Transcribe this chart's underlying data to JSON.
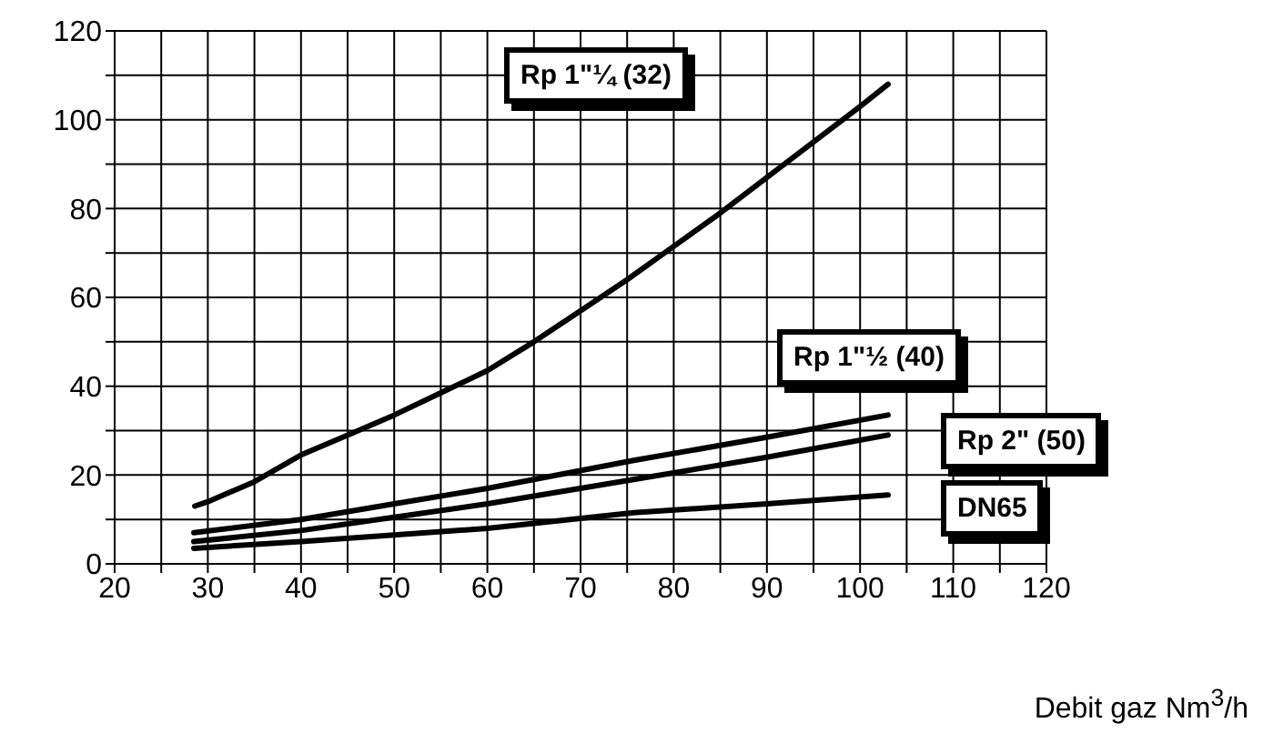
{
  "chart_data": {
    "type": "line",
    "xlabel": "Debit gaz Nm$^{3}$/h",
    "xlim": [
      20,
      120
    ],
    "ylim": [
      0,
      120
    ],
    "xticks": [
      20,
      {
        "value": 25,
        "label": null
      },
      30,
      {
        "value": 35,
        "label": null
      },
      40,
      {
        "value": 45,
        "label": null
      },
      50,
      {
        "value": 55,
        "label": null
      },
      60,
      {
        "value": 65,
        "label": null
      },
      70,
      {
        "value": 75,
        "label": null
      },
      80,
      {
        "value": 85,
        "label": null
      },
      90,
      {
        "value": 95,
        "label": null
      },
      100,
      {
        "value": 105,
        "label": null
      },
      110,
      {
        "value": 115,
        "label": null
      },
      120
    ],
    "yticks": [
      0,
      {
        "value": 10,
        "label": null
      },
      20,
      {
        "value": 30,
        "label": null
      },
      40,
      {
        "value": 50,
        "label": null
      },
      60,
      {
        "value": 70,
        "label": null
      },
      80,
      {
        "value": 90,
        "label": null
      },
      100,
      {
        "value": 110,
        "label": null
      },
      120
    ],
    "grid": true,
    "marker": "none",
    "line_style": "solid",
    "series": [
      {
        "name": "Rp 1\"¼ (32)",
        "color": "#000000",
        "x": [
          28.6,
          30,
          35,
          40,
          45,
          50,
          55,
          60,
          65,
          70,
          75,
          80,
          85,
          90,
          95,
          100,
          103
        ],
        "values": [
          13,
          14,
          18.5,
          24.5,
          29,
          33.5,
          38.5,
          43.5,
          50,
          57,
          64,
          71.5,
          79,
          87,
          95,
          103,
          108
        ]
      },
      {
        "name": "Rp 1\"½ (40)",
        "color": "#000000",
        "x": [
          28.5,
          40,
          50,
          60,
          75.7,
          90,
          103
        ],
        "values": [
          7,
          10,
          13.5,
          17,
          23.3,
          28.5,
          33.5
        ]
      },
      {
        "name": "Rp 2\" (50)",
        "color": "#000000",
        "x": [
          28.5,
          40,
          50,
          60,
          75.7,
          90,
          103
        ],
        "values": [
          5,
          7.5,
          10.5,
          13.5,
          19,
          24,
          29
        ]
      },
      {
        "name": "DN65",
        "color": "#000000",
        "x": [
          28.5,
          40,
          50,
          60,
          75.7,
          90,
          103
        ],
        "values": [
          3.5,
          5,
          6.5,
          8,
          11.5,
          13.5,
          15.5
        ]
      }
    ]
  }
}
